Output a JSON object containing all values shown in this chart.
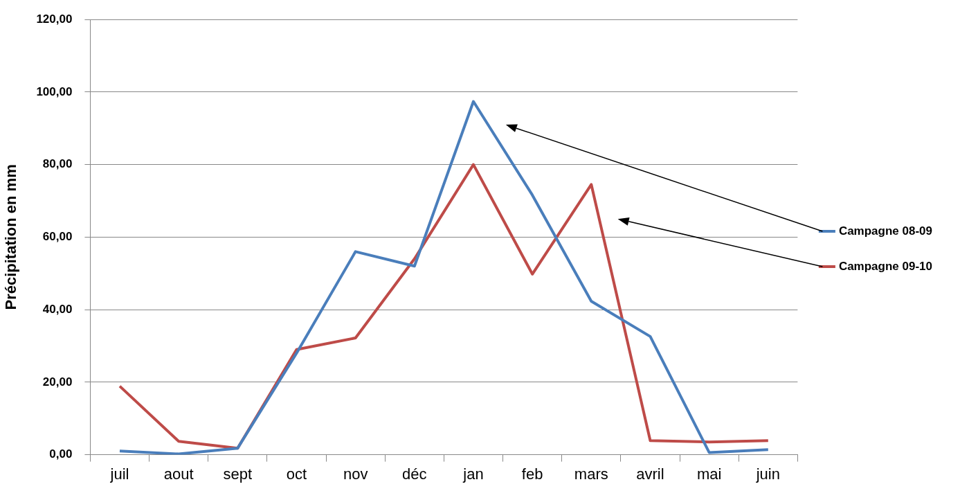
{
  "chart_data": {
    "type": "line",
    "ylabel": "Précipitation en mm",
    "categories": [
      "juil",
      "aout",
      "sept",
      "oct",
      "nov",
      "déc",
      "jan",
      "feb",
      "mars",
      "avril",
      "mai",
      "juin"
    ],
    "series": [
      {
        "name": "Campagne 08-09",
        "color": "#4a7ebb",
        "values": [
          1.0,
          0.2,
          1.8,
          28,
          56,
          52,
          97.4,
          71.6,
          42.3,
          32.6,
          0.6,
          1.4
        ]
      },
      {
        "name": "Campagne 09-10",
        "color": "#be4b48",
        "values": [
          18.9,
          3.7,
          1.8,
          29,
          32.2,
          54,
          80,
          49.8,
          74.5,
          3.9,
          3.5,
          3.9
        ]
      }
    ],
    "ylim": [
      0,
      120
    ],
    "yticks": [
      {
        "value": 0,
        "label": "0,00"
      },
      {
        "value": 20,
        "label": "20,00"
      },
      {
        "value": 40,
        "label": "40,00"
      },
      {
        "value": 60,
        "label": "60,00"
      },
      {
        "value": 80,
        "label": "80,00"
      },
      {
        "value": 100,
        "label": "100,00"
      },
      {
        "value": 120,
        "label": "120,00"
      }
    ],
    "grid": "y",
    "legend": "right",
    "marker": "none",
    "line_style": "solid"
  }
}
